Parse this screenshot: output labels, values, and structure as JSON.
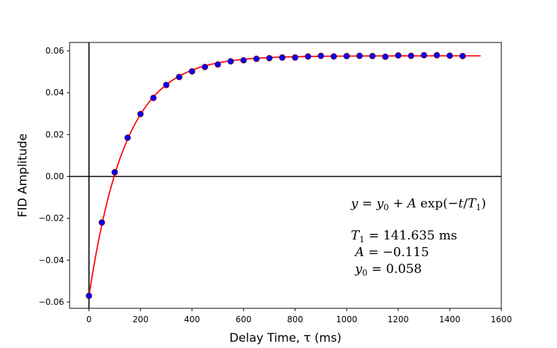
{
  "chart_data": {
    "type": "scatter",
    "title": "",
    "xlabel": "Delay Time, τ (ms)",
    "ylabel": "FID Amplitude",
    "xlim": [
      -75,
      1600
    ],
    "ylim": [
      -0.063,
      0.064
    ],
    "x_ticks": [
      0,
      200,
      400,
      600,
      800,
      1000,
      1200,
      1400,
      1600
    ],
    "x_tick_labels": [
      "0",
      "200",
      "400",
      "600",
      "800",
      "1000",
      "1200",
      "1400",
      "1600"
    ],
    "y_ticks": [
      -0.06,
      -0.04,
      -0.02,
      0.0,
      0.02,
      0.04,
      0.06
    ],
    "y_tick_labels": [
      "−0.06",
      "−0.04",
      "−0.02",
      "0.00",
      "0.02",
      "0.04",
      "0.06"
    ],
    "grid": false,
    "zero_lines": {
      "x": 0,
      "y": 0
    },
    "series": [
      {
        "kind": "points",
        "color": "#0000ff",
        "edgecolor": "#8b0000",
        "x": [
          0,
          50,
          100,
          150,
          200,
          250,
          300,
          350,
          400,
          450,
          500,
          550,
          600,
          650,
          700,
          750,
          800,
          850,
          900,
          950,
          1000,
          1050,
          1100,
          1150,
          1200,
          1250,
          1300,
          1350,
          1400,
          1450
        ],
        "y": [
          -0.057,
          -0.022,
          0.002,
          0.0185,
          0.0298,
          0.0375,
          0.0437,
          0.0475,
          0.0502,
          0.0523,
          0.0535,
          0.055,
          0.0555,
          0.0562,
          0.0565,
          0.0568,
          0.0568,
          0.0573,
          0.0576,
          0.0573,
          0.0575,
          0.0576,
          0.0575,
          0.0572,
          0.0578,
          0.0576,
          0.0579,
          0.0579,
          0.0577,
          0.0575
        ]
      },
      {
        "kind": "fit",
        "color": "#ff0000",
        "model": {
          "y0": 0.0576,
          "A": -0.1148,
          "T1": 141.635
        },
        "x_range": [
          0,
          1520
        ]
      }
    ],
    "annotation": {
      "equation": {
        "y": "y",
        "eq": " = ",
        "y0_base": "y",
        "y0_sub": "0",
        "plus": " + ",
        "A": "A",
        "exp": " exp(−",
        "t": "t",
        "slash": "/",
        "T": "T",
        "T_sub": "1",
        "close": ")"
      },
      "t1_line": {
        "sym": "T",
        "sub": "1",
        "eq": " = ",
        "value": "141.635",
        "unit": " ms"
      },
      "a_line": {
        "sym": "A",
        "eq": " = ",
        "value": "−0.115"
      },
      "y0_line": {
        "sym": "y",
        "sub": "0",
        "eq": " = ",
        "value": "0.058"
      }
    }
  }
}
